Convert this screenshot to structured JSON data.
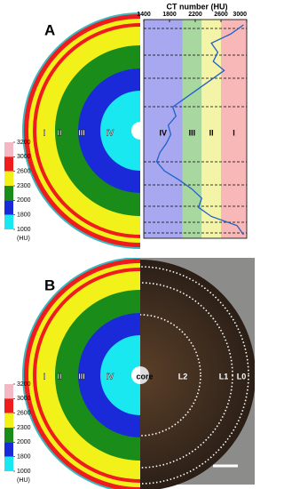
{
  "panels": {
    "a": "A",
    "b": "B"
  },
  "image_zones": [
    "I",
    "II",
    "III",
    "IV"
  ],
  "photo_labels": {
    "core": "core",
    "l2": "L2",
    "l1": "L1",
    "l0": "L0"
  },
  "colorbar": {
    "ticks": [
      3200,
      3000,
      2600,
      2300,
      2000,
      1800,
      1000
    ],
    "unit": "(HU)",
    "colors": [
      "#f4b8c4",
      "#ee1c1c",
      "#f2f21a",
      "#1a8c1a",
      "#1a2ad8",
      "#1ae8f0"
    ]
  },
  "chart_data": {
    "type": "line",
    "xlabel": "CT number (HU)",
    "xlim": [
      1400,
      3000
    ],
    "xticks": [
      1400,
      1800,
      2200,
      2600,
      3000
    ],
    "zones": [
      {
        "name": "IV",
        "range": [
          1400,
          2000
        ],
        "color": "#a8a8f0"
      },
      {
        "name": "III",
        "range": [
          2000,
          2300
        ],
        "color": "#a8d8a0"
      },
      {
        "name": "II",
        "range": [
          2300,
          2600
        ],
        "color": "#f4f4a8"
      },
      {
        "name": "I",
        "range": [
          2600,
          3000
        ],
        "color": "#f8b8b8"
      }
    ],
    "categories": [
      null,
      null,
      null,
      null,
      null,
      null,
      null,
      null,
      null,
      null,
      null,
      null,
      null,
      null,
      null,
      null,
      null,
      null,
      null,
      null,
      null,
      null,
      null,
      null
    ],
    "series": [
      {
        "color": "#2060c8",
        "values": [
          2950,
          2750,
          2450,
          2550,
          2480,
          2650,
          2450,
          2250,
          2050,
          1850,
          1900,
          1780,
          1820,
          1750,
          1650,
          1600,
          1720,
          1950,
          2150,
          2300,
          2250,
          2450,
          2850,
          2950
        ]
      }
    ]
  }
}
